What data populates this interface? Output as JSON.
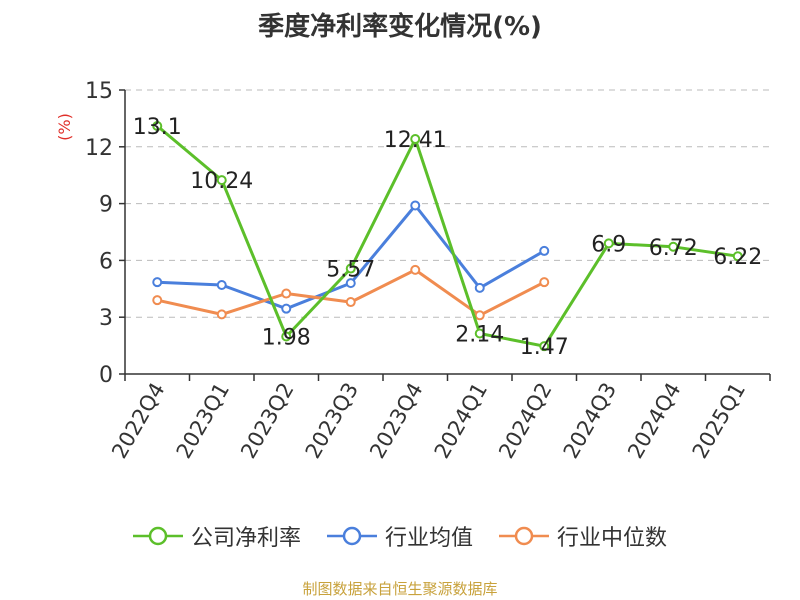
{
  "chart_data": {
    "type": "line",
    "title": "季度净利率变化情况(%)",
    "ylabel": "(%)",
    "xlabel": "",
    "ylim": [
      0,
      15
    ],
    "yticks": [
      0,
      3,
      6,
      9,
      12,
      15
    ],
    "grid": true,
    "legend": "bottom",
    "categories": [
      "2022Q4",
      "2023Q1",
      "2023Q2",
      "2023Q3",
      "2023Q4",
      "2024Q1",
      "2024Q2",
      "2024Q3",
      "2024Q4",
      "2025Q1"
    ],
    "series": [
      {
        "name": "公司净利率",
        "color": "#5cbf2a",
        "values": [
          13.1,
          10.24,
          1.98,
          5.57,
          12.41,
          2.14,
          1.47,
          6.9,
          6.72,
          6.22
        ],
        "labels": [
          "13.1",
          "10.24",
          "1.98",
          "5.57",
          "12.41",
          "2.14",
          "1.47",
          "6.9",
          "6.72",
          "6.22"
        ]
      },
      {
        "name": "行业均值",
        "color": "#4a7fdc",
        "values": [
          4.85,
          4.7,
          3.45,
          4.8,
          8.9,
          4.55,
          6.5,
          null,
          null,
          null
        ]
      },
      {
        "name": "行业中位数",
        "color": "#f08c50",
        "values": [
          3.9,
          3.15,
          4.25,
          3.8,
          5.5,
          3.1,
          4.85,
          null,
          null,
          null
        ]
      }
    ]
  },
  "source": "制图数据来自恒生聚源数据库"
}
